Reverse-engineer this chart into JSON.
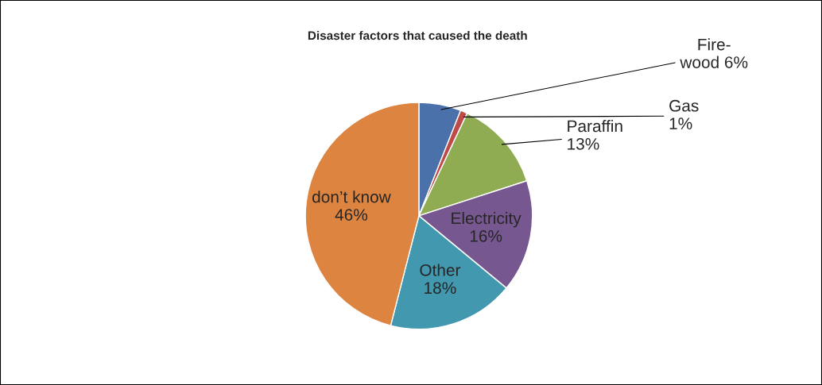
{
  "chart_data": {
    "type": "pie",
    "title": "Disaster factors that caused the death",
    "categories": [
      "Fire-\nwood",
      "Gas",
      "Paraffin",
      "Electricity",
      "Other",
      "don’t know"
    ],
    "values": [
      6,
      1,
      13,
      16,
      18,
      46
    ],
    "colors": [
      "#4a71a9",
      "#be4b48",
      "#8fac53",
      "#76578f",
      "#4298af",
      "#dd8440"
    ],
    "value_labels": [
      "6%",
      "1%",
      "13%",
      "16%",
      "18%",
      "46%"
    ]
  }
}
